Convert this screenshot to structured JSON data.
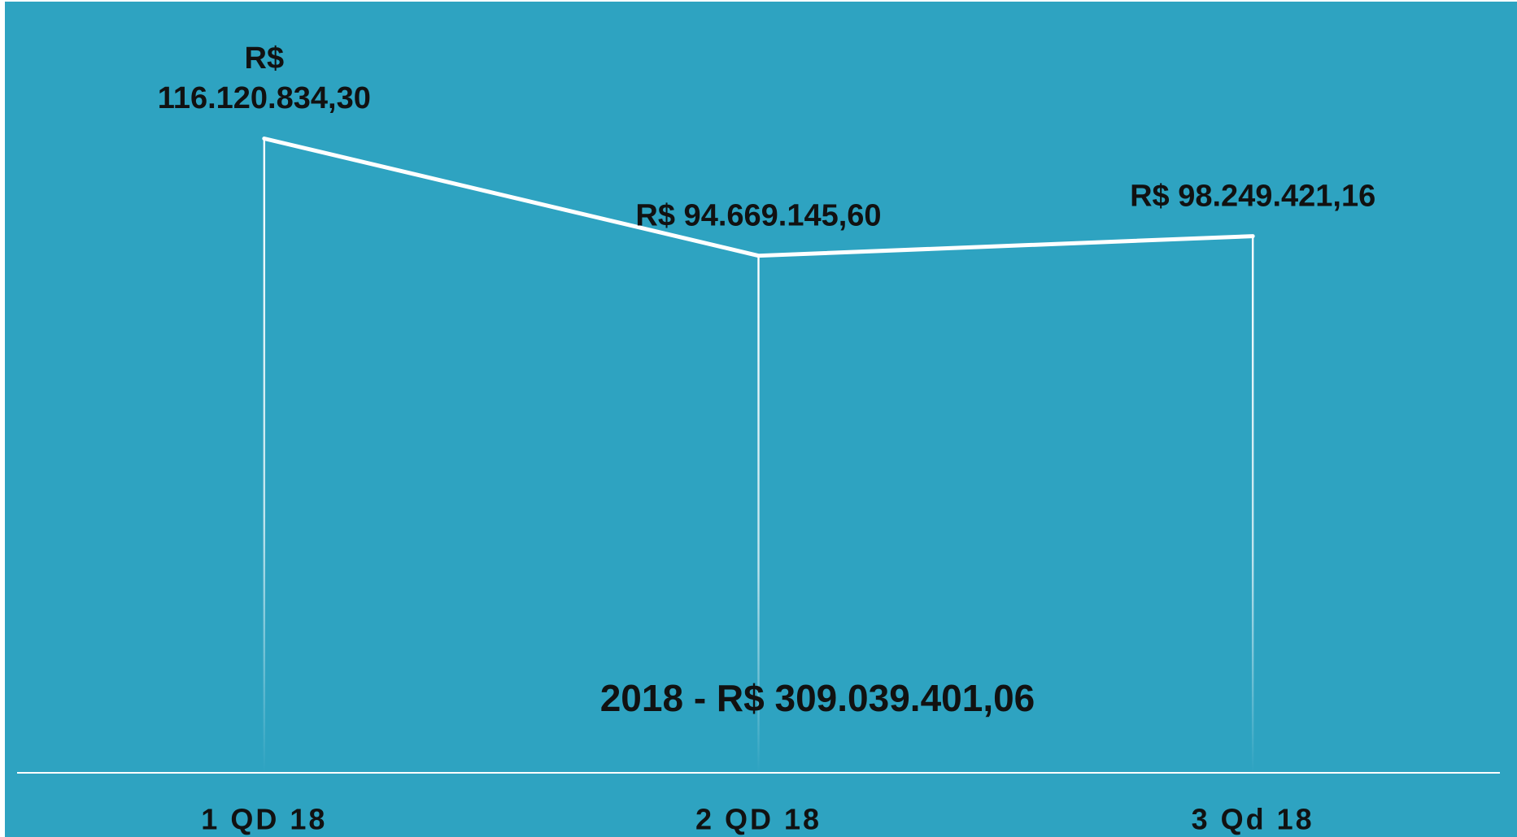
{
  "chart_data": {
    "type": "line",
    "categories": [
      "1 QD 18",
      "2 QD 18",
      "3 Qd 18"
    ],
    "series": [
      {
        "color": "#ffffff",
        "values": [
          116120834.3,
          94669145.6,
          98249421.16
        ],
        "value_labels": [
          "R$ 116.120.834,30",
          "R$ 94.669.145,60",
          "R$ 98.249.421,16"
        ]
      }
    ],
    "annotation": "2018 - R$ 309.039.401,06",
    "ylim": [
      0,
      140000000
    ],
    "background": "#2ea3c1"
  }
}
